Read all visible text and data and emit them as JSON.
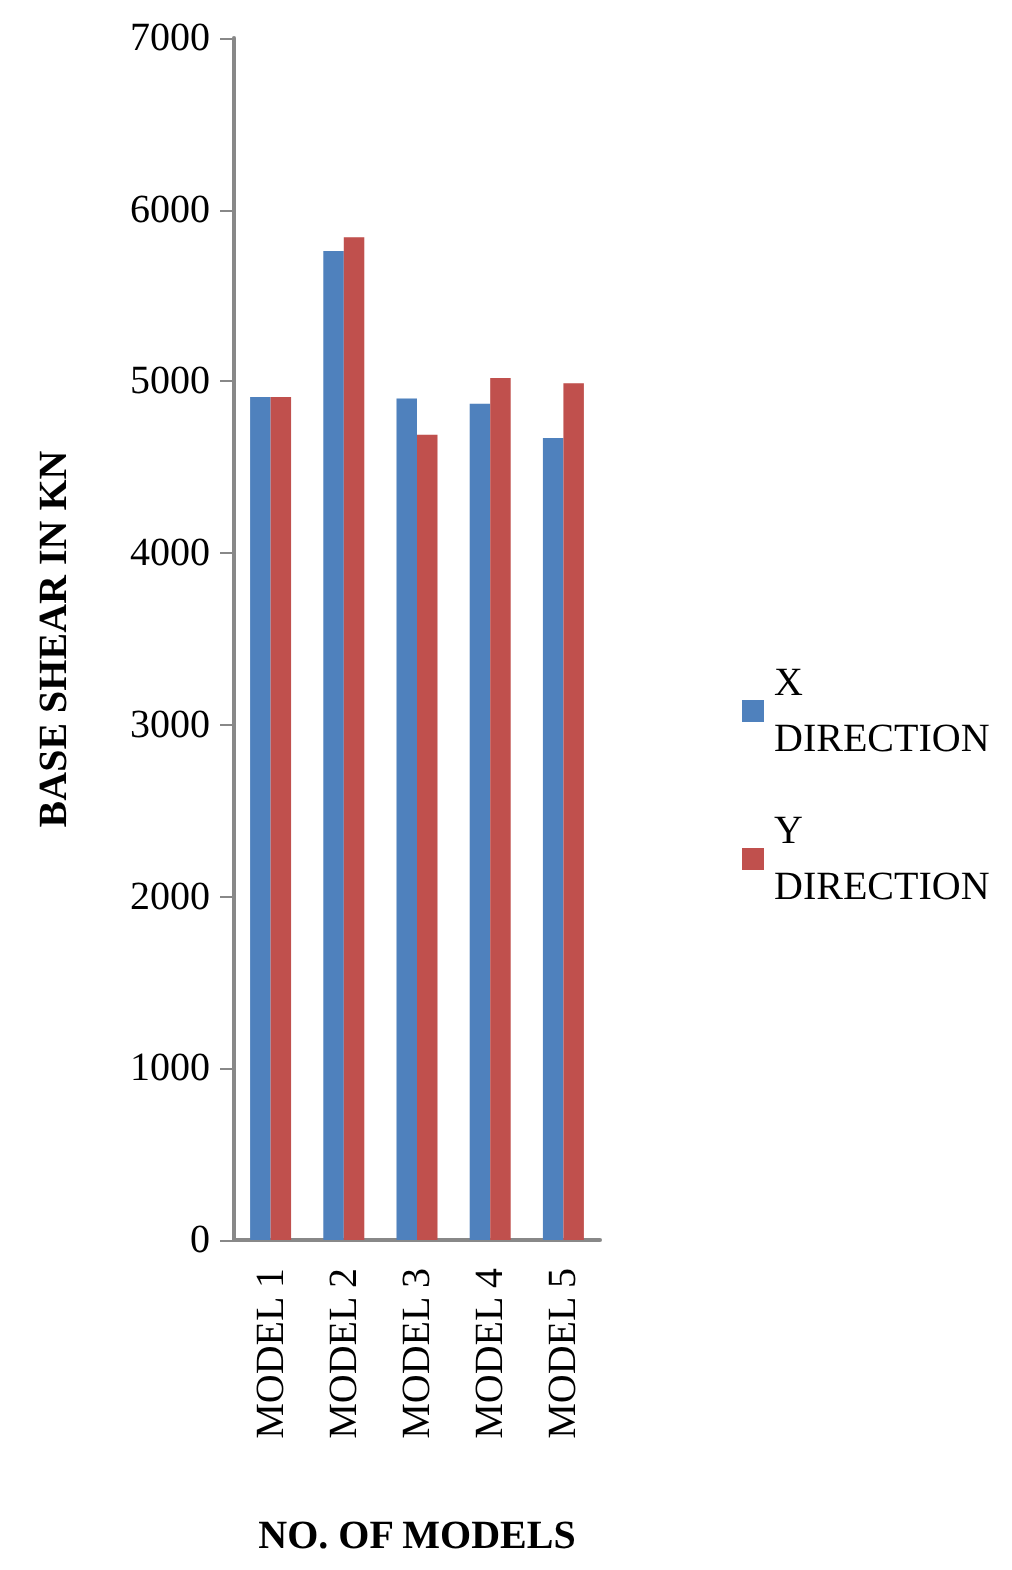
{
  "chart_data": {
    "type": "bar",
    "xlabel": "NO. OF MODELS",
    "ylabel": "BASE SHEAR IN KN",
    "categories": [
      "MODEL 1",
      "MODEL 2",
      "MODEL 3",
      "MODEL 4",
      "MODEL 5"
    ],
    "series": [
      {
        "name": "X DIRECTION",
        "color": "#4f81bd",
        "values": [
          4910,
          5760,
          4900,
          4870,
          4670
        ]
      },
      {
        "name": "Y DIRECTION",
        "color": "#c0504d",
        "values": [
          4910,
          5840,
          4690,
          5020,
          4990
        ]
      }
    ],
    "ylim": [
      0,
      7000
    ],
    "yticks": [
      0,
      1000,
      2000,
      3000,
      4000,
      5000,
      6000,
      7000
    ],
    "grid": false,
    "legend": "right"
  }
}
